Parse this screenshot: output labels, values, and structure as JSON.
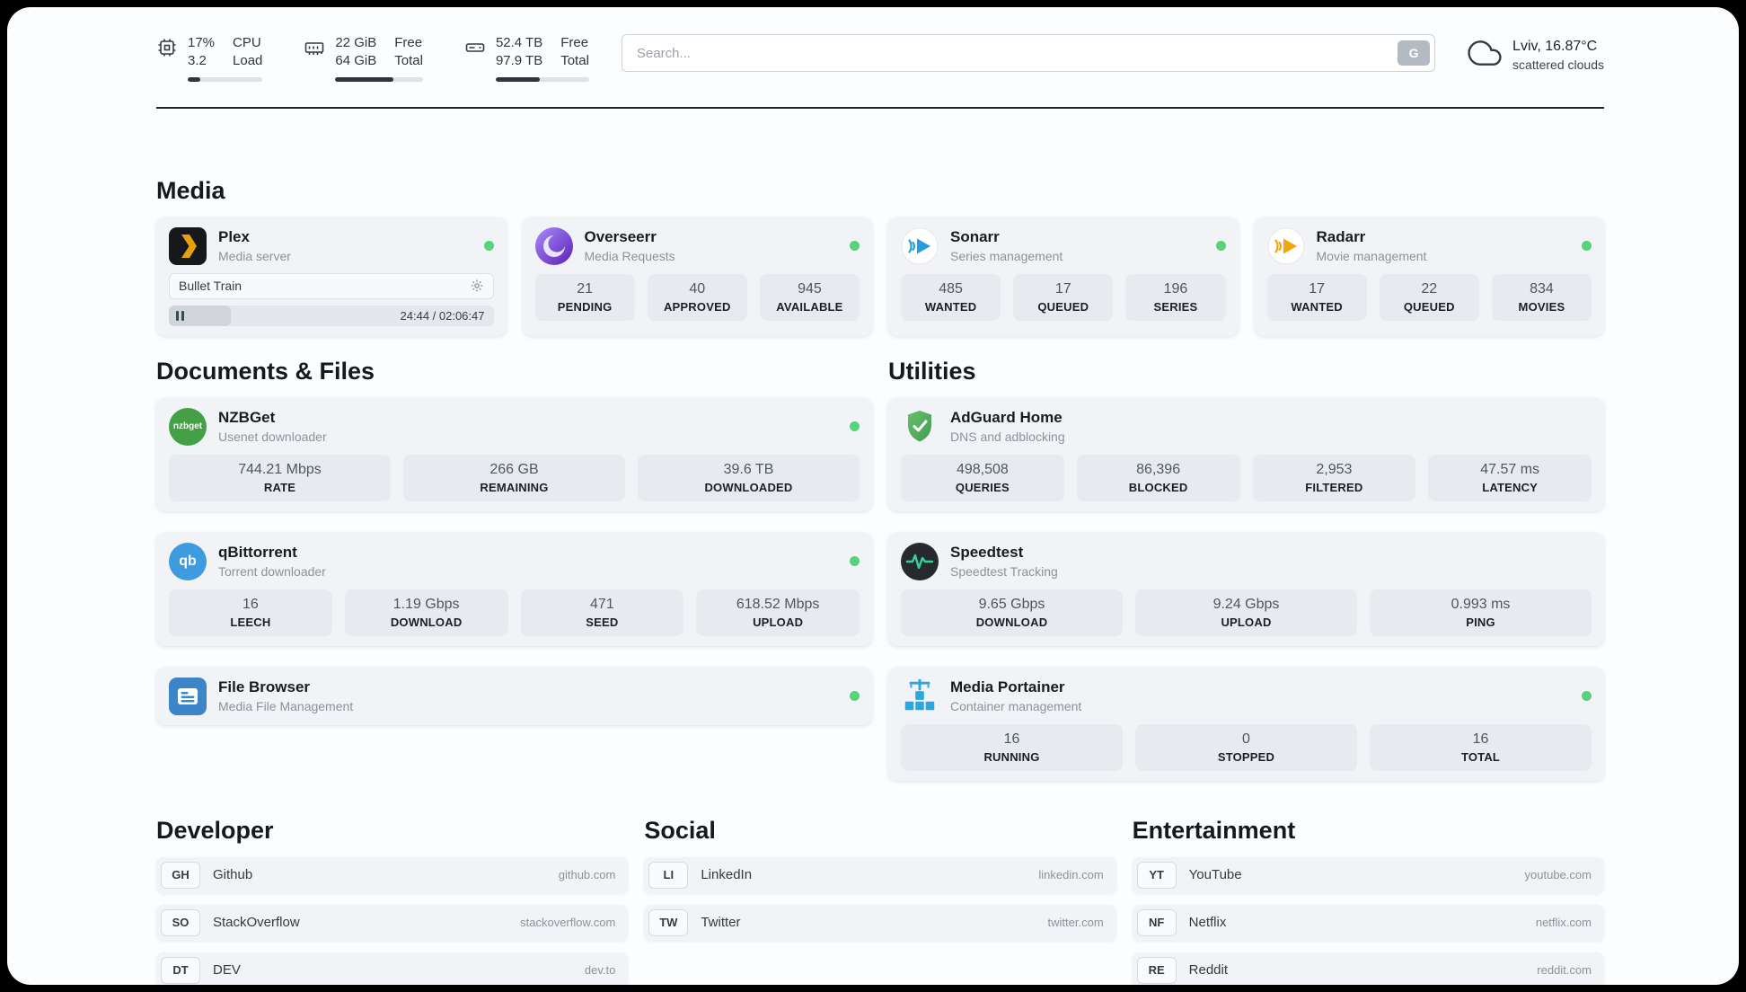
{
  "header": {
    "cpu": {
      "value_top": "17%",
      "value_bottom": "3.2",
      "label_top": "CPU",
      "label_bottom": "Load",
      "bar_percent": 17
    },
    "ram": {
      "value_top": "22 GiB",
      "value_bottom": "64 GiB",
      "label_top": "Free",
      "label_bottom": "Total",
      "bar_percent": 66
    },
    "disk": {
      "value_top": "52.4 TB",
      "value_bottom": "97.9 TB",
      "label_top": "Free",
      "label_bottom": "Total",
      "bar_percent": 47
    },
    "search": {
      "placeholder": "Search...",
      "engine_button": "G"
    },
    "weather": {
      "location": "Lviv, 16.87°C",
      "condition": "scattered clouds"
    }
  },
  "sections": {
    "media": {
      "title": "Media",
      "plex": {
        "name": "Plex",
        "subtitle": "Media server",
        "online": true,
        "now_playing": "Bullet Train",
        "time": "24:44 / 02:06:47",
        "progress_percent": 19
      },
      "overseerr": {
        "name": "Overseerr",
        "subtitle": "Media Requests",
        "online": true,
        "stats": [
          {
            "value": "21",
            "label": "PENDING"
          },
          {
            "value": "40",
            "label": "APPROVED"
          },
          {
            "value": "945",
            "label": "AVAILABLE"
          }
        ]
      },
      "sonarr": {
        "name": "Sonarr",
        "subtitle": "Series management",
        "online": true,
        "stats": [
          {
            "value": "485",
            "label": "WANTED"
          },
          {
            "value": "17",
            "label": "QUEUED"
          },
          {
            "value": "196",
            "label": "SERIES"
          }
        ]
      },
      "radarr": {
        "name": "Radarr",
        "subtitle": "Movie management",
        "online": true,
        "stats": [
          {
            "value": "17",
            "label": "WANTED"
          },
          {
            "value": "22",
            "label": "QUEUED"
          },
          {
            "value": "834",
            "label": "MOVIES"
          }
        ]
      }
    },
    "documents": {
      "title": "Documents & Files",
      "nzbget": {
        "name": "NZBGet",
        "subtitle": "Usenet downloader",
        "online": true,
        "icon_text": "nzbget",
        "stats": [
          {
            "value": "744.21 Mbps",
            "label": "RATE"
          },
          {
            "value": "266 GB",
            "label": "REMAINING"
          },
          {
            "value": "39.6 TB",
            "label": "DOWNLOADED"
          }
        ]
      },
      "qbittorrent": {
        "name": "qBittorrent",
        "subtitle": "Torrent downloader",
        "online": true,
        "icon_text": "qb",
        "stats": [
          {
            "value": "16",
            "label": "LEECH"
          },
          {
            "value": "1.19 Gbps",
            "label": "DOWNLOAD"
          },
          {
            "value": "471",
            "label": "SEED"
          },
          {
            "value": "618.52 Mbps",
            "label": "UPLOAD"
          }
        ]
      },
      "filebrowser": {
        "name": "File Browser",
        "subtitle": "Media File Management",
        "online": true
      }
    },
    "utilities": {
      "title": "Utilities",
      "adguard": {
        "name": "AdGuard Home",
        "subtitle": "DNS and adblocking",
        "stats": [
          {
            "value": "498,508",
            "label": "QUERIES"
          },
          {
            "value": "86,396",
            "label": "BLOCKED"
          },
          {
            "value": "2,953",
            "label": "FILTERED"
          },
          {
            "value": "47.57 ms",
            "label": "LATENCY"
          }
        ]
      },
      "speedtest": {
        "name": "Speedtest",
        "subtitle": "Speedtest Tracking",
        "stats": [
          {
            "value": "9.65 Gbps",
            "label": "DOWNLOAD"
          },
          {
            "value": "9.24 Gbps",
            "label": "UPLOAD"
          },
          {
            "value": "0.993 ms",
            "label": "PING"
          }
        ]
      },
      "portainer": {
        "name": "Media Portainer",
        "subtitle": "Container management",
        "online": true,
        "stats": [
          {
            "value": "16",
            "label": "RUNNING"
          },
          {
            "value": "0",
            "label": "STOPPED"
          },
          {
            "value": "16",
            "label": "TOTAL"
          }
        ]
      }
    },
    "developer": {
      "title": "Developer",
      "links": [
        {
          "abbr": "GH",
          "name": "Github",
          "domain": "github.com"
        },
        {
          "abbr": "SO",
          "name": "StackOverflow",
          "domain": "stackoverflow.com"
        },
        {
          "abbr": "DT",
          "name": "DEV",
          "domain": "dev.to"
        }
      ]
    },
    "social": {
      "title": "Social",
      "links": [
        {
          "abbr": "LI",
          "name": "LinkedIn",
          "domain": "linkedin.com"
        },
        {
          "abbr": "TW",
          "name": "Twitter",
          "domain": "twitter.com"
        }
      ]
    },
    "entertainment": {
      "title": "Entertainment",
      "links": [
        {
          "abbr": "YT",
          "name": "YouTube",
          "domain": "youtube.com"
        },
        {
          "abbr": "NF",
          "name": "Netflix",
          "domain": "netflix.com"
        },
        {
          "abbr": "RE",
          "name": "Reddit",
          "domain": "reddit.com"
        }
      ]
    }
  },
  "colors": {
    "status_online": "#58d27d",
    "plex": "#e5a00d",
    "overseerr": "#5b21b6",
    "sonarr": "#279ce0",
    "radarr": "#f2a60d",
    "nzbget": "#43a047",
    "qbittorrent": "#3f9be0",
    "filebrowser": "#3c86c8",
    "adguard": "#55ab5e",
    "speedtest_line": "#34d399",
    "portainer": "#2aa7dc"
  }
}
